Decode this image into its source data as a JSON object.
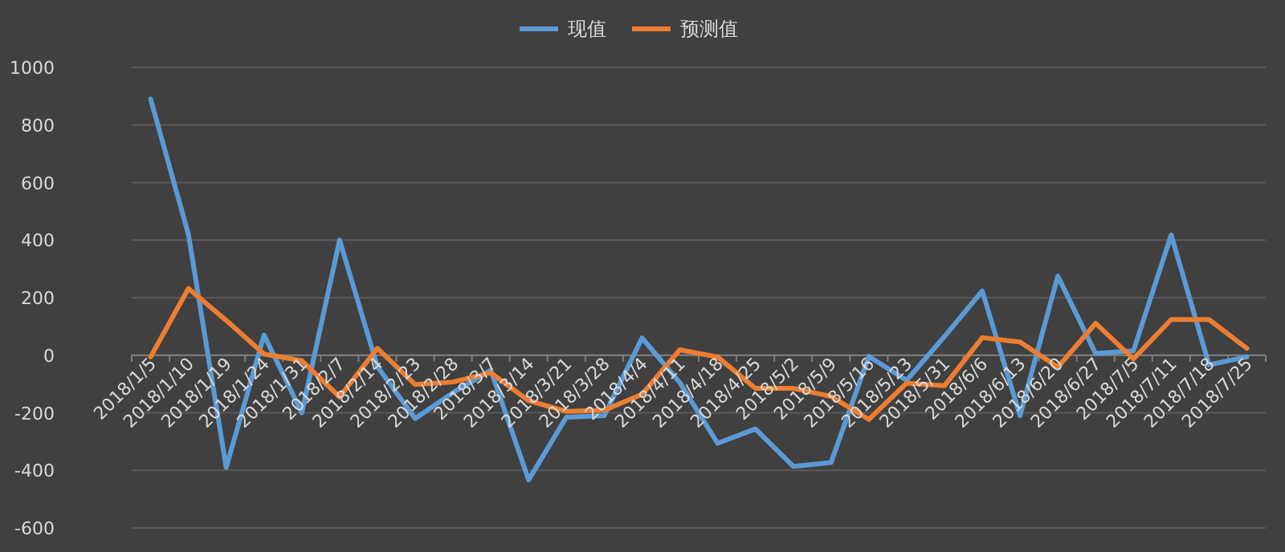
{
  "chart_data": {
    "type": "line",
    "categories": [
      "2018/1/5",
      "2018/1/10",
      "2018/1/19",
      "2018/1/24",
      "2018/1/31",
      "2018/2/7",
      "2018/2/14",
      "2018/2/23",
      "2018/2/28",
      "2018/3/7",
      "2018/3/14",
      "2018/3/21",
      "2018/3/28",
      "2018/4/4",
      "2018/4/11",
      "2018/4/18",
      "2018/4/25",
      "2018/5/2",
      "2018/5/9",
      "2018/5/16",
      "2018/5/23",
      "2018/5/31",
      "2018/6/6",
      "2018/6/13",
      "2018/6/20",
      "2018/6/27",
      "2018/7/5",
      "2018/7/11",
      "2018/7/18",
      "2018/7/25"
    ],
    "series": [
      {
        "name": "现值",
        "color": "#5b9bd5",
        "values": [
          890,
          420,
          -390,
          70,
          -200,
          400,
          -40,
          -220,
          -130,
          -52,
          -433,
          -215,
          -210,
          60,
          -95,
          -306,
          -256,
          -386,
          -373,
          -4,
          -87,
          65,
          223,
          -210,
          275,
          6,
          15,
          418,
          -33,
          -6
        ]
      },
      {
        "name": "预测值",
        "color": "#ed7d31",
        "values": [
          -6,
          232,
          121,
          4,
          -19,
          -145,
          24,
          -102,
          -93,
          -61,
          -158,
          -195,
          -191,
          -136,
          19,
          -6,
          -115,
          -115,
          -143,
          -223,
          -97,
          -106,
          61,
          46,
          -41,
          111,
          -13,
          124,
          124,
          24
        ]
      }
    ],
    "ylim": [
      -600,
      1000
    ],
    "yticks": [
      -600,
      -400,
      -200,
      0,
      200,
      400,
      600,
      800,
      1000
    ],
    "grid": "y",
    "legend": "top",
    "marker": "none",
    "line_style": "solid"
  }
}
